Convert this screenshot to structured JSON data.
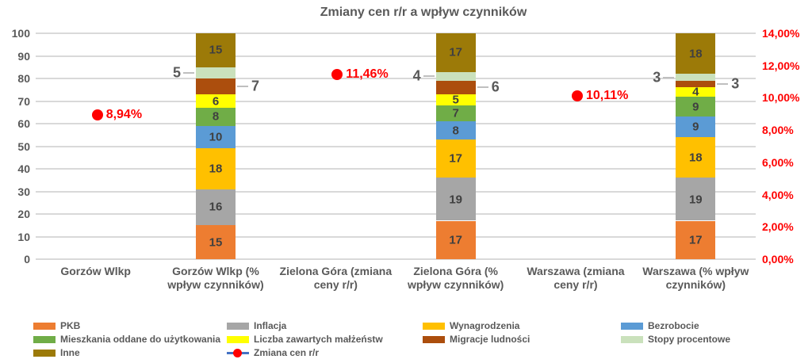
{
  "title": "Zmiany cen r/r a wpływ czynników",
  "chart_data": {
    "type": "bar",
    "stacked": true,
    "title": "Zmiany cen r/r a wpływ czynników",
    "categories": [
      "Gorzów Wlkp",
      "Gorzów Wlkp (% wpływ czynników)",
      "Zielona Góra (zmiana ceny r/r)",
      "Zielona Góra (% wpływ czynników)",
      "Warszawa (zmiana ceny r/r)",
      "Warszawa (% wpływ czynników)"
    ],
    "left_axis": {
      "min": 0,
      "max": 100,
      "step": 10,
      "ticks": [
        "0",
        "10",
        "20",
        "30",
        "40",
        "50",
        "60",
        "70",
        "80",
        "90",
        "100"
      ]
    },
    "right_axis": {
      "min": 0,
      "max": 14,
      "step": 2,
      "ticks": [
        "0,00%",
        "2,00%",
        "4,00%",
        "6,00%",
        "8,00%",
        "10,00%",
        "12,00%",
        "14,00%"
      ]
    },
    "grid": true,
    "series": [
      {
        "name": "PKB",
        "color": "#ED7D31",
        "values": [
          null,
          15,
          null,
          17,
          null,
          17
        ]
      },
      {
        "name": "Inflacja",
        "color": "#A6A6A6",
        "values": [
          null,
          16,
          null,
          19,
          null,
          19
        ]
      },
      {
        "name": "Wynagrodzenia",
        "color": "#FFC000",
        "values": [
          null,
          18,
          null,
          17,
          null,
          18
        ]
      },
      {
        "name": "Bezrobocie",
        "color": "#5B9BD5",
        "values": [
          null,
          10,
          null,
          8,
          null,
          9
        ]
      },
      {
        "name": "Mieszkania oddane do użytkowania",
        "color": "#70AD47",
        "values": [
          null,
          8,
          null,
          7,
          null,
          9
        ]
      },
      {
        "name": "Liczba zawartych małżeństw",
        "color": "#FFFF00",
        "values": [
          null,
          6,
          null,
          5,
          null,
          4
        ]
      },
      {
        "name": "Migracje ludności",
        "color": "#AC4E0D",
        "values": [
          null,
          7,
          null,
          6,
          null,
          3
        ],
        "callout": "right"
      },
      {
        "name": "Stopy procentowe",
        "color": "#CAE1BC",
        "values": [
          null,
          5,
          null,
          4,
          null,
          3
        ],
        "callout": "left"
      },
      {
        "name": "Inne",
        "color": "#9C7A08",
        "values": [
          null,
          15,
          null,
          17,
          null,
          18
        ]
      }
    ],
    "line_series": {
      "name": "Zmiana cen r/r",
      "color": "#FF0000",
      "points": [
        {
          "category_index": 0,
          "value": 8.94,
          "label": "8,94%"
        },
        {
          "category_index": 2,
          "value": 11.46,
          "label": "11,46%"
        },
        {
          "category_index": 4,
          "value": 10.11,
          "label": "10,11%"
        }
      ]
    },
    "legend": {
      "position": "bottom",
      "items": [
        {
          "label": "PKB",
          "marker": "rect",
          "color": "#ED7D31"
        },
        {
          "label": "Inflacja",
          "marker": "rect",
          "color": "#A6A6A6"
        },
        {
          "label": "Wynagrodzenia",
          "marker": "rect",
          "color": "#FFC000"
        },
        {
          "label": "Bezrobocie",
          "marker": "rect",
          "color": "#5B9BD5"
        },
        {
          "label": "Mieszkania oddane do użytkowania",
          "marker": "rect",
          "color": "#70AD47"
        },
        {
          "label": "Liczba zawartych małżeństw",
          "marker": "rect",
          "color": "#FFFF00"
        },
        {
          "label": "Migracje ludności",
          "marker": "rect",
          "color": "#AC4E0D"
        },
        {
          "label": "Stopy procentowe",
          "marker": "rect",
          "color": "#CAE1BC"
        },
        {
          "label": "Inne",
          "marker": "rect",
          "color": "#9C7A08"
        },
        {
          "label": "Zmiana cen r/r",
          "marker": "line-dot",
          "color": "#FF0000",
          "line_color": "#4472C4"
        }
      ]
    },
    "style": {
      "title_color": "#595959",
      "axis_label_color": "#595959",
      "right_axis_label_color": "#FF0000",
      "segment_label_color": "#404040",
      "gridline_color": "#D9D9D9",
      "leader_line_color": "#BFBFBF",
      "background": "#FFFFFF"
    }
  }
}
